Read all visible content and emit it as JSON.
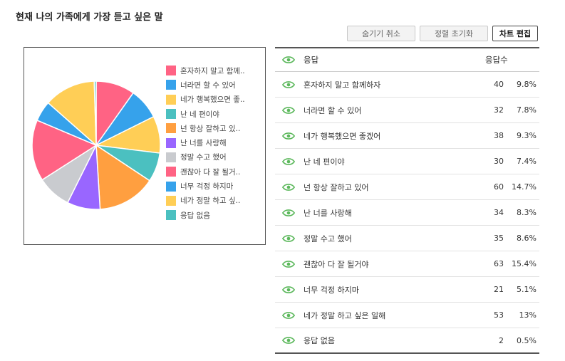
{
  "title": "현재 나의 가족에게 가장 듣고 싶은 말",
  "buttons": {
    "hide_cancel": "숨기기 취소",
    "sort_reset": "정렬 초기화",
    "chart_edit": "차트 편집"
  },
  "table": {
    "header_answer": "응답",
    "header_count": "응답수"
  },
  "colors": [
    "#ff6384",
    "#36a2eb",
    "#ffce56",
    "#4bc0c0",
    "#ff9f40",
    "#9966ff",
    "#c9cbcf",
    "#ff6384",
    "#36a2eb",
    "#ffce56",
    "#4bc0c0"
  ],
  "accent": "#5cb85c",
  "chart_data": {
    "type": "pie",
    "categories": [
      "혼자하지 말고 함께하자",
      "너라면 할 수 있어",
      "네가 행복했으면 좋겠어",
      "난 네 편이야",
      "넌 항상 잘하고 있어",
      "난 너를 사랑해",
      "정말 수고 했어",
      "괜찮아 다 잘 될거야",
      "너무 걱정 하지마",
      "네가 정말 하고 싶은 일해",
      "응답 없음"
    ],
    "legend_labels": [
      "혼자하지 말고 함께..",
      "너라면 할 수 있어",
      "네가 행복했으면 좋..",
      "난 네 편이야",
      "넌 항상 잘하고 있..",
      "난 너를 사랑해",
      "정말 수고 했어",
      "괜찮아 다 잘 될거..",
      "너무 걱정 하지마",
      "네가 정말 하고 싶..",
      "응답 없음"
    ],
    "values": [
      40,
      32,
      38,
      30,
      60,
      34,
      35,
      63,
      21,
      53,
      2
    ],
    "percents": [
      "9.8%",
      "7.8%",
      "9.3%",
      "7.4%",
      "14.7%",
      "8.3%",
      "8.6%",
      "15.4%",
      "5.1%",
      "13%",
      "0.5%"
    ],
    "legend_position": "right"
  }
}
